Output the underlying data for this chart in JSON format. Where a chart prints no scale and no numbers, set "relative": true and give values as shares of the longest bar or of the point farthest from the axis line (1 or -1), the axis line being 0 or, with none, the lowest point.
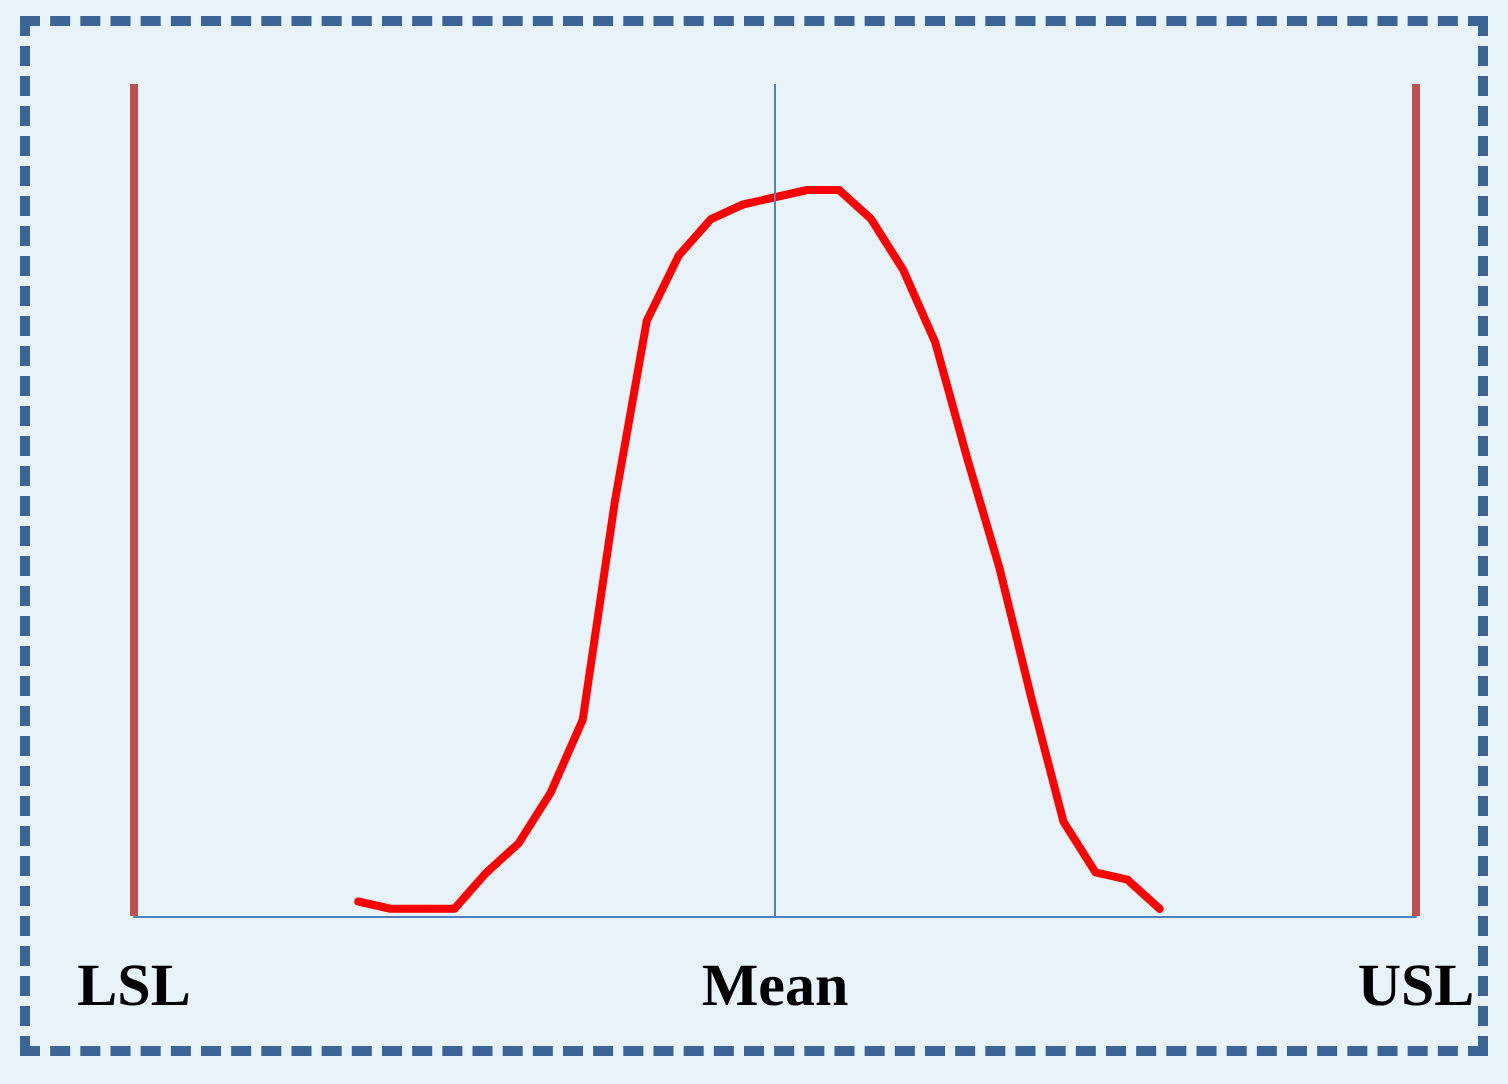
{
  "chart_data": {
    "type": "line",
    "relative": true,
    "marker": "none",
    "line_style": "solid",
    "categories": [
      "LSL",
      null,
      null,
      null,
      null,
      null,
      null,
      null,
      null,
      null,
      null,
      null,
      null,
      null,
      null,
      null,
      null,
      null,
      null,
      null,
      "Mean",
      null,
      null,
      null,
      null,
      null,
      null,
      null,
      null,
      null,
      null,
      null,
      null,
      null,
      null,
      null,
      null,
      null,
      null,
      null,
      "USL"
    ],
    "series": [
      {
        "color": "#ff0000",
        "values": [
          null,
          null,
          null,
          null,
          null,
          null,
          null,
          0.02,
          0.01,
          0.01,
          0.01,
          0.06,
          0.1,
          0.17,
          0.27,
          0.57,
          0.82,
          0.91,
          0.96,
          0.98,
          0.99,
          1.0,
          1.0,
          0.96,
          0.89,
          0.79,
          0.63,
          0.48,
          0.3,
          0.13,
          0.06,
          0.05,
          0.01,
          null,
          null,
          null,
          null,
          null,
          null,
          null,
          null
        ]
      }
    ],
    "ref_lines": [
      {
        "axis": "x",
        "value": "LSL",
        "color": "#c0504d"
      },
      {
        "axis": "x",
        "value": "Mean",
        "color": "#4f81bd"
      },
      {
        "axis": "x",
        "value": "USL",
        "color": "#c0504d"
      }
    ]
  }
}
